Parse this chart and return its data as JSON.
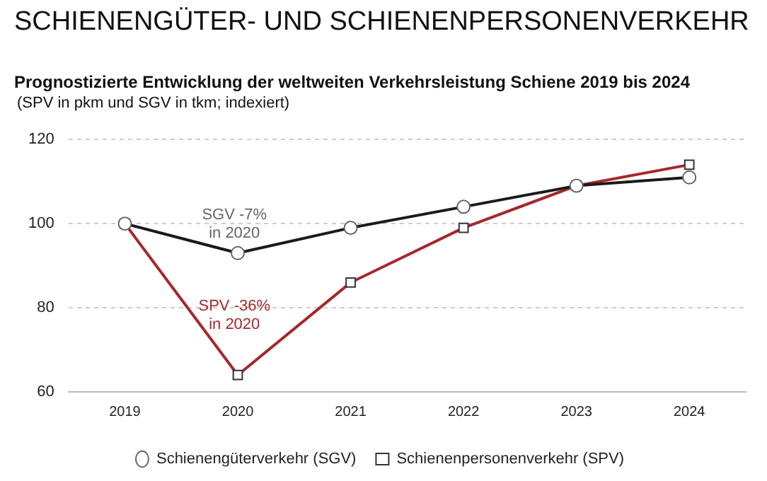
{
  "chart_data": {
    "type": "line",
    "title": "SCHIENENGÜTER- UND SCHIENENPERSONENVERKEHR",
    "subtitle": "Prognostizierte Entwicklung der weltweiten Verkehrsleistung Schiene 2019 bis 2024",
    "annotations": [
      "(SPV in pkm und SGV in tkm; indexiert)",
      "SGV -7%\nin 2020",
      "SPV -36%\nin 2020"
    ],
    "categories": [
      "2019",
      "2020",
      "2021",
      "2022",
      "2023",
      "2024"
    ],
    "series": [
      {
        "name": "Schienengüterverkehr (SGV)",
        "color": "#1a1a1a",
        "marker": "circle",
        "values": [
          100,
          93,
          99,
          104,
          109,
          111
        ]
      },
      {
        "name": "Schienenpersonenverkehr (SPV)",
        "color": "#a5282d",
        "marker": "square",
        "values": [
          100,
          64,
          86,
          99,
          109,
          114
        ]
      }
    ],
    "ylim": [
      60,
      120
    ],
    "yticks": [
      60,
      80,
      100,
      120
    ],
    "grid": "y",
    "legend": "bottom",
    "line_style": "solid"
  }
}
